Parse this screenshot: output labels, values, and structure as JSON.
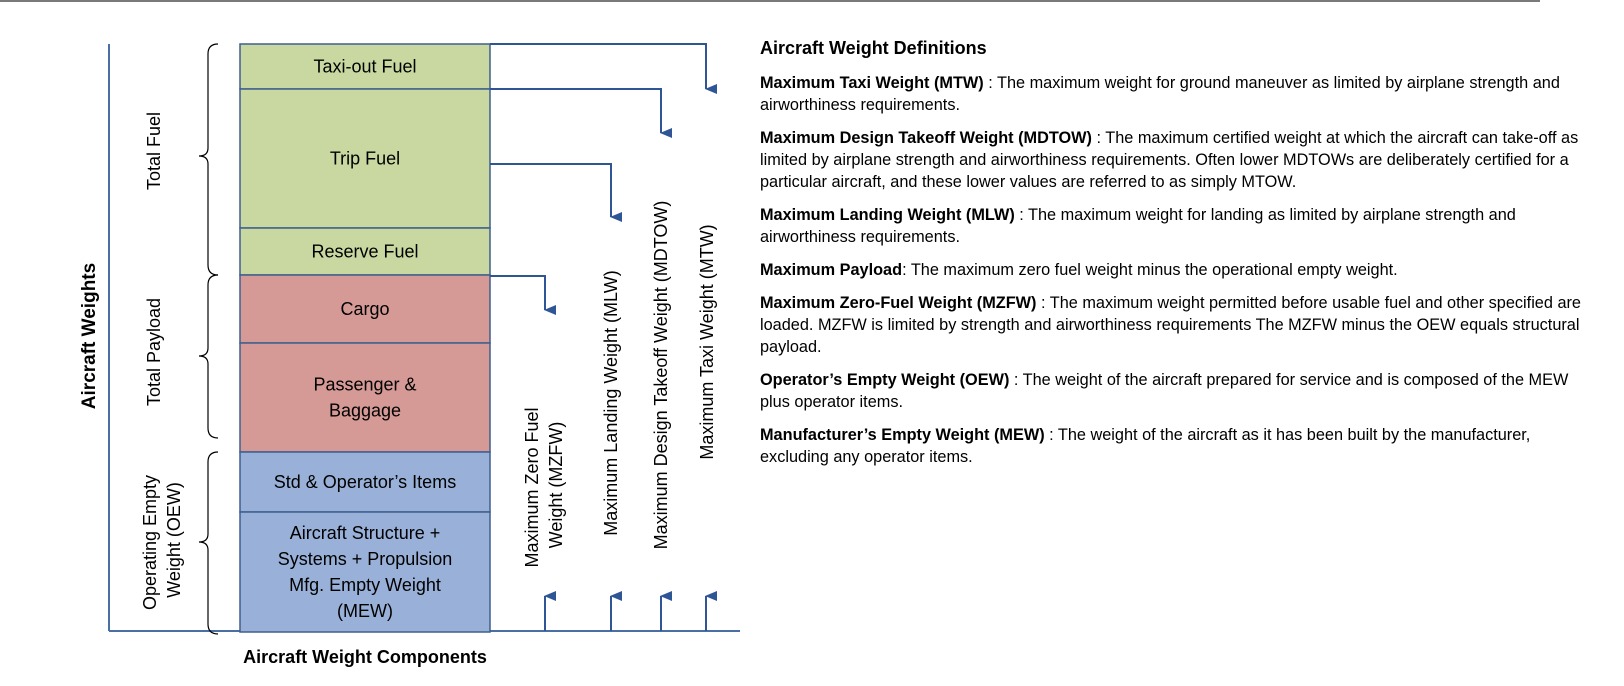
{
  "diagram": {
    "axis_label": "Aircraft Weights",
    "bottom_label": "Aircraft Weight Components",
    "groups": [
      {
        "line1": "Total Fuel",
        "line2": ""
      },
      {
        "line1": "Total Payload",
        "line2": ""
      },
      {
        "line1": "Operating Empty",
        "line2": "Weight (OEW)"
      }
    ],
    "blocks": [
      {
        "lines": [
          "Taxi-out Fuel"
        ],
        "category": "fuel"
      },
      {
        "lines": [
          "Trip Fuel"
        ],
        "category": "fuel"
      },
      {
        "lines": [
          "Reserve Fuel"
        ],
        "category": "fuel"
      },
      {
        "lines": [
          "Cargo"
        ],
        "category": "payload"
      },
      {
        "lines": [
          "Passenger &",
          "Baggage"
        ],
        "category": "payload"
      },
      {
        "lines": [
          "Std & Operator’s Items"
        ],
        "category": "empty"
      },
      {
        "lines": [
          "Aircraft Structure +",
          "Systems + Propulsion",
          "Mfg. Empty Weight",
          "(MEW)"
        ],
        "category": "empty"
      }
    ],
    "limits": [
      {
        "line1": "Maximum Zero Fuel",
        "line2": "Weight (MZFW)"
      },
      {
        "line1": "Maximum Landing Weight  (MLW)",
        "line2": ""
      },
      {
        "line1": "Maximum  Design Takeoff Weight  (MDTOW)",
        "line2": ""
      },
      {
        "line1": "Maximum  Taxi Weight (MTW)",
        "line2": ""
      }
    ],
    "colors": {
      "fuel": "#c8d8a0",
      "payload": "#d59a96",
      "empty": "#99b1d8",
      "block_border": "#3f5f8e",
      "arrow": "#2f5597",
      "axis": "#4a6fa5"
    }
  },
  "definitions": {
    "title": "Aircraft Weight Definitions",
    "items": [
      {
        "term": "Maximum Taxi Weight (MTW)",
        "text": " : The maximum weight for ground maneuver as limited by airplane strength and airworthiness requirements."
      },
      {
        "term": "Maximum Design Takeoff Weight (MDTOW)",
        "text": " : The maximum certified weight at which the aircraft can take-off as  limited by airplane strength and airworthiness requirements. Often lower MDTOWs are deliberately certified for a particular aircraft, and these lower values are referred to as simply MTOW."
      },
      {
        "term": "Maximum Landing Weight (MLW)",
        "text": " : The maximum weight for landing as limited by airplane strength and airworthiness requirements."
      },
      {
        "term": "Maximum Payload",
        "text": ": The maximum zero fuel weight minus the  operational empty weight."
      },
      {
        "term": "Maximum Zero-Fuel Weight (MZFW)",
        "text": " : The maximum weight permitted before usable fuel and other specified are loaded. MZFW is limited by strength and airworthiness requirements The MZFW minus the OEW equals structural payload."
      },
      {
        "term": "Operator’s Empty Weight (OEW)",
        "text": " : The weight of the aircraft prepared for service and is composed of the MEW plus operator items."
      },
      {
        "term": "Manufacturer’s Empty Weight (MEW)",
        "text": " : The weight of the aircraft as it has been built by the manufacturer, excluding any operator items."
      }
    ]
  }
}
